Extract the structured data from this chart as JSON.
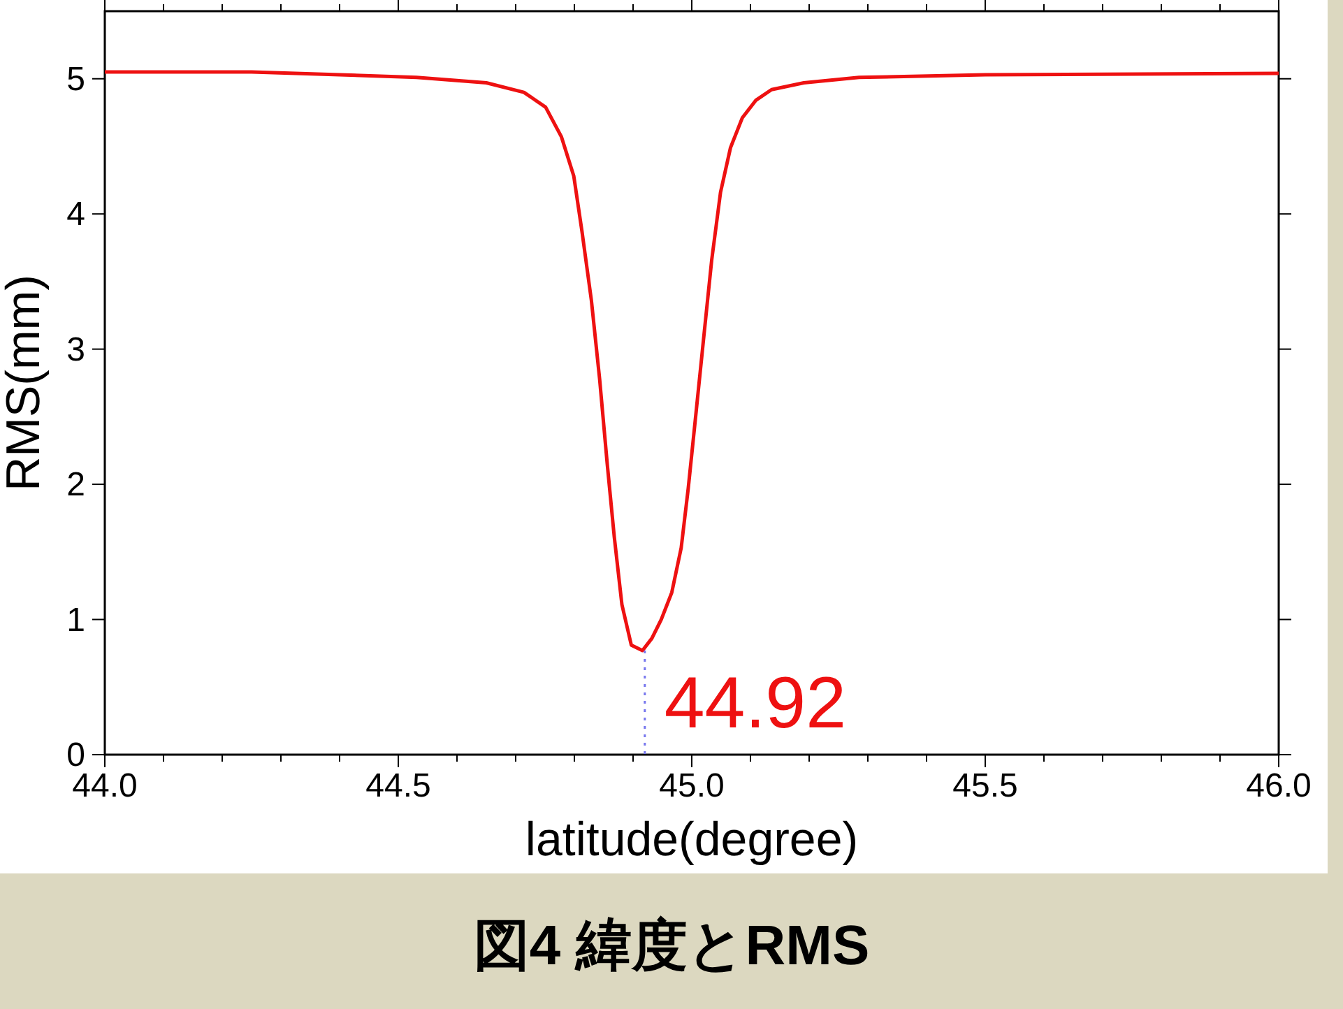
{
  "chart_data": {
    "type": "line",
    "title": "図4 緯度とRMS",
    "xlabel": "latitude(degree)",
    "ylabel": "RMS(mm)",
    "color": "#ee1111",
    "x": [
      44.0,
      44.25,
      44.4,
      44.531,
      44.65,
      44.714,
      44.751,
      44.778,
      44.799,
      44.813,
      44.829,
      44.843,
      44.856,
      44.868,
      44.881,
      44.897,
      44.916,
      44.932,
      44.948,
      44.966,
      44.982,
      44.994,
      45.008,
      45.02,
      45.034,
      45.049,
      45.066,
      45.086,
      45.109,
      45.136,
      45.191,
      45.285,
      45.5,
      46.0
    ],
    "values": [
      5.05,
      5.05,
      5.03,
      5.01,
      4.97,
      4.9,
      4.79,
      4.57,
      4.28,
      3.87,
      3.36,
      2.78,
      2.15,
      1.61,
      1.11,
      0.81,
      0.77,
      0.86,
      1.0,
      1.2,
      1.53,
      1.97,
      2.56,
      3.07,
      3.66,
      4.16,
      4.49,
      4.71,
      4.84,
      4.92,
      4.97,
      5.01,
      5.03,
      5.04
    ],
    "xlim": [
      44.0,
      46.0
    ],
    "ylim": [
      0,
      5.5
    ],
    "xticks": [
      {
        "value": 44.0,
        "label": "44.0"
      },
      {
        "value": 44.1,
        "label": null
      },
      {
        "value": 44.2,
        "label": null
      },
      {
        "value": 44.3,
        "label": null
      },
      {
        "value": 44.4,
        "label": null
      },
      {
        "value": 44.5,
        "label": "44.5"
      },
      {
        "value": 44.6,
        "label": null
      },
      {
        "value": 44.7,
        "label": null
      },
      {
        "value": 44.8,
        "label": null
      },
      {
        "value": 44.9,
        "label": null
      },
      {
        "value": 45.0,
        "label": "45.0"
      },
      {
        "value": 45.1,
        "label": null
      },
      {
        "value": 45.2,
        "label": null
      },
      {
        "value": 45.3,
        "label": null
      },
      {
        "value": 45.4,
        "label": null
      },
      {
        "value": 45.5,
        "label": "45.5"
      },
      {
        "value": 45.6,
        "label": null
      },
      {
        "value": 45.7,
        "label": null
      },
      {
        "value": 45.8,
        "label": null
      },
      {
        "value": 45.9,
        "label": null
      },
      {
        "value": 46.0,
        "label": "46.0"
      }
    ],
    "yticks": [
      0,
      1,
      2,
      3,
      4,
      5
    ],
    "annotations": [
      {
        "text": "44.92",
        "x": 44.92,
        "y": 0.77
      }
    ]
  }
}
